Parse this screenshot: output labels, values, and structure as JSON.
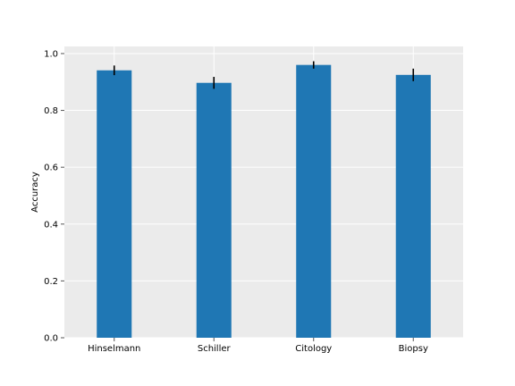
{
  "chart_data": {
    "type": "bar",
    "categories": [
      "Hinselmann",
      "Schiller",
      "Citology",
      "Biopsy"
    ],
    "values": [
      0.941,
      0.897,
      0.96,
      0.925
    ],
    "errors": [
      0.017,
      0.021,
      0.013,
      0.022
    ],
    "ylabel": "Accuracy",
    "xlabel": "",
    "ylim": [
      0.0,
      1.025
    ],
    "yticks": [
      "0.0",
      "0.2",
      "0.4",
      "0.6",
      "0.8",
      "1.0"
    ],
    "grid": true,
    "colors": {
      "bar": "#1f77b4",
      "error": "#000000",
      "background": "#ebebeb",
      "grid": "#ffffff"
    }
  }
}
